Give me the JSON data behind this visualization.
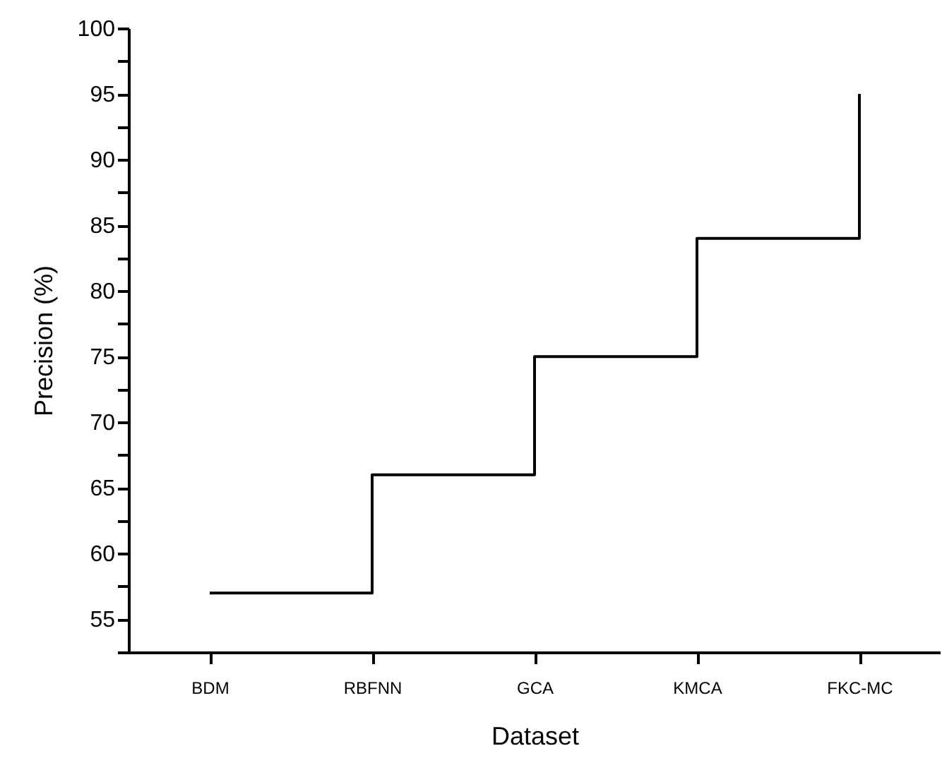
{
  "chart_data": {
    "type": "step",
    "xlabel": "Dataset",
    "ylabel": "Precision (%)",
    "categories": [
      "BDM",
      "RBFNN",
      "GCA",
      "KMCA",
      "FKC-MC"
    ],
    "series": [
      {
        "color": "#000000",
        "values": [
          57,
          66,
          75,
          84,
          95
        ]
      }
    ],
    "ylim": [
      52.5,
      100
    ],
    "yticks": [
      {
        "value": 52.5,
        "label": null
      },
      55,
      {
        "value": 57.5,
        "label": null
      },
      60,
      {
        "value": 62.5,
        "label": null
      },
      65,
      {
        "value": 67.5,
        "label": null
      },
      70,
      {
        "value": 72.5,
        "label": null
      },
      75,
      {
        "value": 77.5,
        "label": null
      },
      80,
      {
        "value": 82.5,
        "label": null
      },
      85,
      {
        "value": 87.5,
        "label": null
      },
      90,
      {
        "value": 92.5,
        "label": null
      },
      95,
      {
        "value": 97.5,
        "label": null
      },
      100
    ],
    "grid": false,
    "marker": "none",
    "line_style": "solid"
  }
}
